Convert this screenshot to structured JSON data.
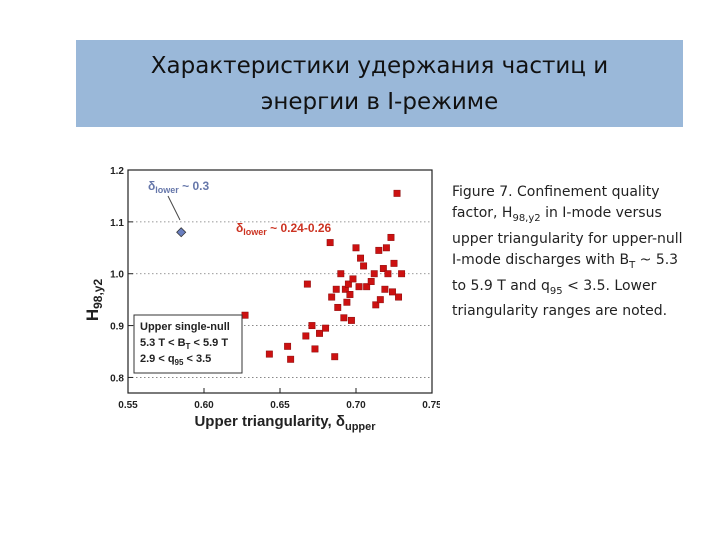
{
  "slide": {
    "title_line1": "Характеристики удержания частиц и",
    "title_line2": "энергии в I-режиме"
  },
  "caption": {
    "part1": "Figure 7. Confinement quality factor, H",
    "sub1": "98,y2",
    "part2": " in I-mode versus upper triangularity for upper-null I-mode discharges with B",
    "sub2": "T",
    "part3": " ~ 5.3 to 5.9 T and q",
    "sub3": "95",
    "part4": " < 3.5. Lower triangularity ranges are noted."
  },
  "chart_data": {
    "type": "scatter",
    "xlabel": "Upper triangularity, δ",
    "xlabel_sub": "upper",
    "ylabel": "H",
    "ylabel_sub": "98,y2",
    "xlim": [
      0.55,
      0.75
    ],
    "ylim": [
      0.77,
      1.2
    ],
    "x_ticks": [
      "0.55",
      "0.60",
      "0.65",
      "0.70",
      "0.75"
    ],
    "y_ticks": [
      "0.8",
      "0.9",
      "1.0",
      "1.1",
      "1.2"
    ],
    "grid": "horizontal dotted",
    "colors": {
      "series_upper": "#cc1111",
      "series_lower": "#6a7fc0"
    },
    "annotations": {
      "lower_03": {
        "delta": "δ",
        "sub": "lower",
        "text": " ~ 0.3"
      },
      "lower_024": {
        "delta": "δ",
        "sub": "lower",
        "text": " ~ 0.24-0.26"
      }
    },
    "legend_box": {
      "line1": "Upper single-null",
      "line2": "5.3 T < B",
      "line2_sub": "T",
      "line2_end": " < 5.9 T",
      "line3": "2.9 < q",
      "line3_sub": "95",
      "line3_end": " < 3.5"
    },
    "series": [
      {
        "marker": "diamond",
        "points": [
          [
            0.585,
            1.08
          ]
        ]
      },
      {
        "marker": "square",
        "points": [
          [
            0.627,
            0.92
          ],
          [
            0.643,
            0.845
          ],
          [
            0.655,
            0.86
          ],
          [
            0.657,
            0.835
          ],
          [
            0.667,
            0.88
          ],
          [
            0.668,
            0.98
          ],
          [
            0.671,
            0.9
          ],
          [
            0.673,
            0.855
          ],
          [
            0.676,
            0.885
          ],
          [
            0.68,
            0.895
          ],
          [
            0.683,
            1.06
          ],
          [
            0.684,
            0.955
          ],
          [
            0.686,
            0.84
          ],
          [
            0.687,
            0.97
          ],
          [
            0.688,
            0.935
          ],
          [
            0.69,
            1.0
          ],
          [
            0.692,
            0.915
          ],
          [
            0.693,
            0.97
          ],
          [
            0.694,
            0.945
          ],
          [
            0.695,
            0.98
          ],
          [
            0.696,
            0.96
          ],
          [
            0.697,
            0.91
          ],
          [
            0.698,
            0.99
          ],
          [
            0.7,
            1.05
          ],
          [
            0.702,
            0.975
          ],
          [
            0.703,
            1.03
          ],
          [
            0.705,
            1.015
          ],
          [
            0.707,
            0.975
          ],
          [
            0.71,
            0.985
          ],
          [
            0.712,
            1.0
          ],
          [
            0.713,
            0.94
          ],
          [
            0.715,
            1.045
          ],
          [
            0.716,
            0.95
          ],
          [
            0.718,
            1.01
          ],
          [
            0.719,
            0.97
          ],
          [
            0.72,
            1.05
          ],
          [
            0.721,
            1.0
          ],
          [
            0.723,
            1.07
          ],
          [
            0.724,
            0.965
          ],
          [
            0.725,
            1.02
          ],
          [
            0.727,
            1.155
          ],
          [
            0.728,
            0.955
          ],
          [
            0.73,
            1.0
          ]
        ]
      }
    ]
  }
}
